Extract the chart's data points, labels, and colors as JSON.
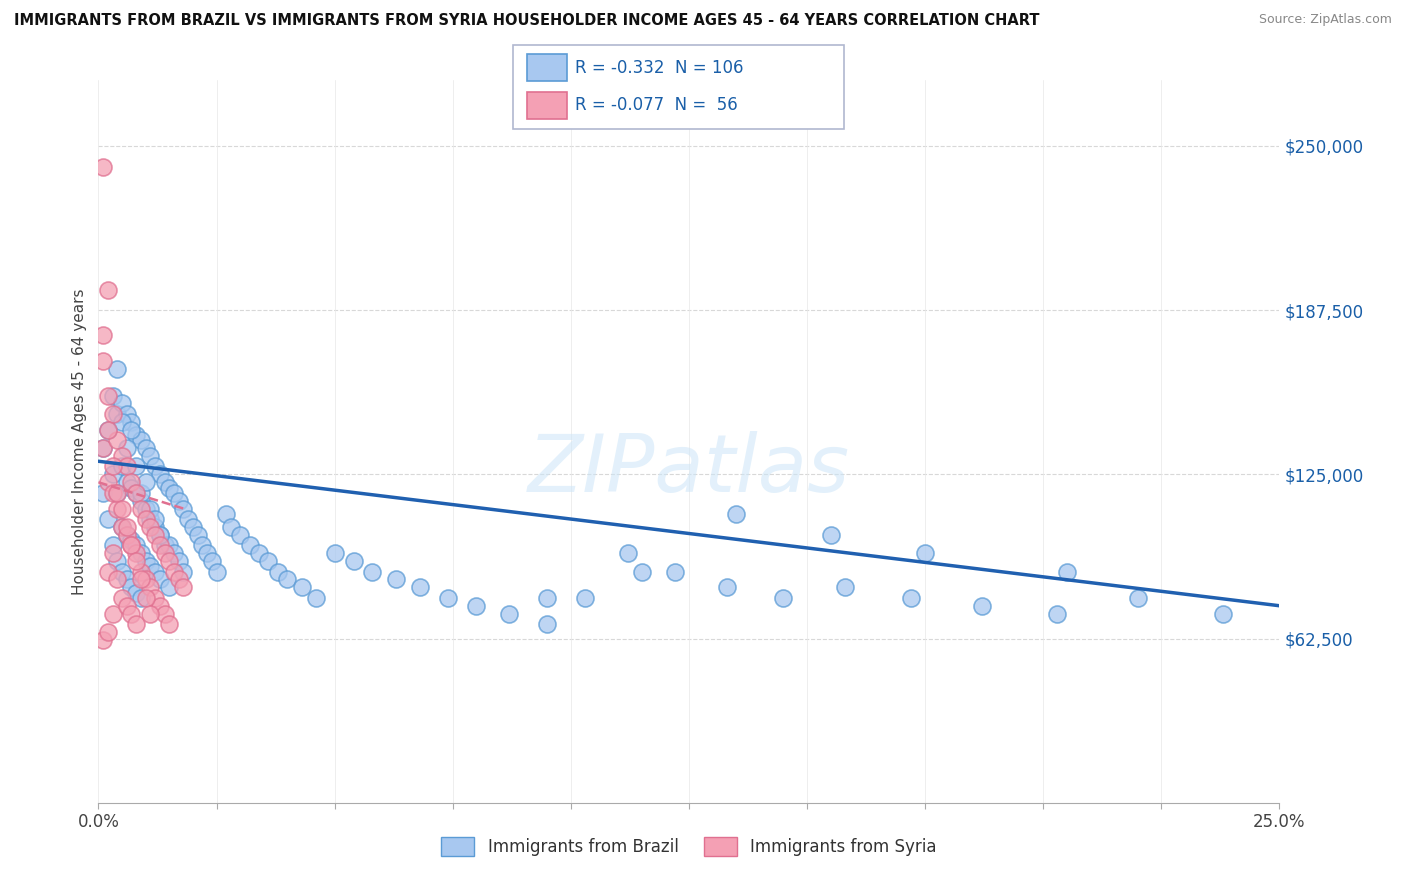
{
  "title": "IMMIGRANTS FROM BRAZIL VS IMMIGRANTS FROM SYRIA HOUSEHOLDER INCOME AGES 45 - 64 YEARS CORRELATION CHART",
  "source": "Source: ZipAtlas.com",
  "ylabel": "Householder Income Ages 45 - 64 years",
  "xlim": [
    0.0,
    0.25
  ],
  "ylim": [
    0,
    275000
  ],
  "xticks": [
    0.0,
    0.025,
    0.05,
    0.075,
    0.1,
    0.125,
    0.15,
    0.175,
    0.2,
    0.225,
    0.25
  ],
  "ytick_positions": [
    62500,
    125000,
    187500,
    250000
  ],
  "ytick_labels": [
    "$62,500",
    "$125,000",
    "$187,500",
    "$250,000"
  ],
  "brazil_color": "#a8c8f0",
  "syria_color": "#f4a0b4",
  "brazil_edge_color": "#5b9bd5",
  "syria_edge_color": "#e07090",
  "trend_brazil_color": "#2060b0",
  "trend_syria_color": "#e07090",
  "brazil_R": -0.332,
  "brazil_N": 106,
  "syria_R": -0.077,
  "syria_N": 56,
  "watermark": "ZIPatlas",
  "legend_brazil": "Immigrants from Brazil",
  "legend_syria": "Immigrants from Syria",
  "background_color": "#ffffff",
  "grid_color": "#d8d8d8",
  "brazil_x": [
    0.001,
    0.001,
    0.002,
    0.002,
    0.003,
    0.003,
    0.003,
    0.004,
    0.004,
    0.004,
    0.005,
    0.005,
    0.005,
    0.005,
    0.006,
    0.006,
    0.006,
    0.006,
    0.007,
    0.007,
    0.007,
    0.007,
    0.008,
    0.008,
    0.008,
    0.008,
    0.009,
    0.009,
    0.009,
    0.009,
    0.01,
    0.01,
    0.01,
    0.011,
    0.011,
    0.011,
    0.012,
    0.012,
    0.012,
    0.013,
    0.013,
    0.013,
    0.014,
    0.014,
    0.015,
    0.015,
    0.015,
    0.016,
    0.016,
    0.017,
    0.017,
    0.018,
    0.018,
    0.019,
    0.02,
    0.021,
    0.022,
    0.023,
    0.024,
    0.025,
    0.027,
    0.028,
    0.03,
    0.032,
    0.034,
    0.036,
    0.038,
    0.04,
    0.043,
    0.046,
    0.05,
    0.054,
    0.058,
    0.063,
    0.068,
    0.074,
    0.08,
    0.087,
    0.095,
    0.103,
    0.112,
    0.122,
    0.133,
    0.145,
    0.158,
    0.172,
    0.187,
    0.203,
    0.22,
    0.238,
    0.004,
    0.005,
    0.006,
    0.007,
    0.008,
    0.009,
    0.01,
    0.011,
    0.012,
    0.013,
    0.175,
    0.205,
    0.155,
    0.135,
    0.115,
    0.095
  ],
  "brazil_y": [
    135000,
    118000,
    142000,
    108000,
    155000,
    125000,
    98000,
    148000,
    118000,
    92000,
    152000,
    128000,
    105000,
    88000,
    148000,
    122000,
    102000,
    85000,
    145000,
    120000,
    100000,
    82000,
    140000,
    118000,
    98000,
    80000,
    138000,
    115000,
    95000,
    78000,
    135000,
    112000,
    92000,
    132000,
    108000,
    90000,
    128000,
    105000,
    88000,
    125000,
    102000,
    85000,
    122000,
    98000,
    120000,
    98000,
    82000,
    118000,
    95000,
    115000,
    92000,
    112000,
    88000,
    108000,
    105000,
    102000,
    98000,
    95000,
    92000,
    88000,
    110000,
    105000,
    102000,
    98000,
    95000,
    92000,
    88000,
    85000,
    82000,
    78000,
    95000,
    92000,
    88000,
    85000,
    82000,
    78000,
    75000,
    72000,
    68000,
    78000,
    95000,
    88000,
    82000,
    78000,
    82000,
    78000,
    75000,
    72000,
    78000,
    72000,
    165000,
    145000,
    135000,
    142000,
    128000,
    118000,
    122000,
    112000,
    108000,
    102000,
    95000,
    88000,
    102000,
    110000,
    88000,
    78000
  ],
  "syria_x": [
    0.001,
    0.001,
    0.001,
    0.002,
    0.002,
    0.002,
    0.002,
    0.003,
    0.003,
    0.003,
    0.003,
    0.004,
    0.004,
    0.004,
    0.005,
    0.005,
    0.005,
    0.006,
    0.006,
    0.006,
    0.007,
    0.007,
    0.007,
    0.008,
    0.008,
    0.008,
    0.009,
    0.009,
    0.01,
    0.01,
    0.011,
    0.011,
    0.012,
    0.012,
    0.013,
    0.013,
    0.014,
    0.014,
    0.015,
    0.015,
    0.016,
    0.017,
    0.018,
    0.001,
    0.002,
    0.003,
    0.004,
    0.005,
    0.006,
    0.007,
    0.008,
    0.009,
    0.01,
    0.011,
    0.001,
    0.002
  ],
  "syria_y": [
    242000,
    178000,
    135000,
    195000,
    155000,
    122000,
    88000,
    148000,
    118000,
    95000,
    72000,
    138000,
    112000,
    85000,
    132000,
    105000,
    78000,
    128000,
    102000,
    75000,
    122000,
    98000,
    72000,
    118000,
    95000,
    68000,
    112000,
    88000,
    108000,
    85000,
    105000,
    82000,
    102000,
    78000,
    98000,
    75000,
    95000,
    72000,
    92000,
    68000,
    88000,
    85000,
    82000,
    168000,
    142000,
    128000,
    118000,
    112000,
    105000,
    98000,
    92000,
    85000,
    78000,
    72000,
    62000,
    65000
  ],
  "trend_brazil_x0": 0.0,
  "trend_brazil_y0": 130000,
  "trend_brazil_x1": 0.25,
  "trend_brazil_y1": 75000,
  "trend_syria_x0": 0.0,
  "trend_syria_y0": 122000,
  "trend_syria_x1": 0.018,
  "trend_syria_y1": 112000
}
